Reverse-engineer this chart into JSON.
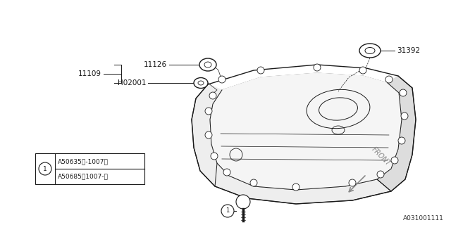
{
  "bg_color": "#ffffff",
  "line_color": "#1a1a1a",
  "watermark": "A031001111",
  "parts": {
    "label_11126": "11126",
    "label_H02001": "H02001",
    "label_11109": "11109",
    "label_31392": "31392"
  },
  "front_label": "FRONT",
  "legend_line1": "A50635（-1007）",
  "legend_line2": "A50685（1007-）"
}
